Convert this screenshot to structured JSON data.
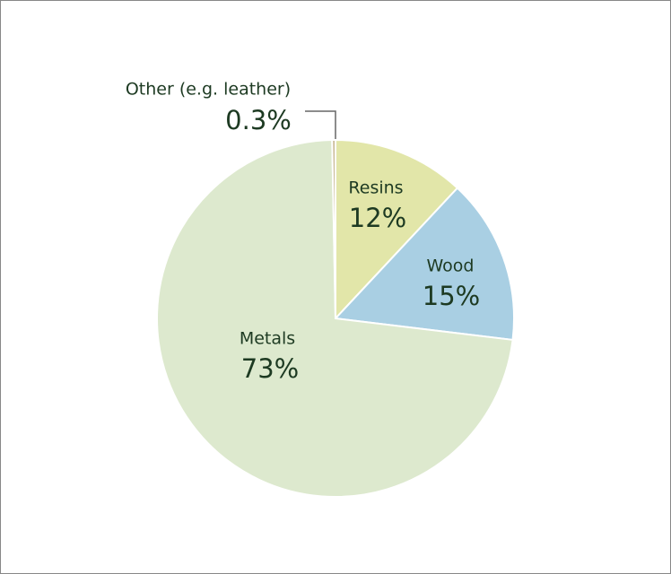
{
  "chart_data": {
    "type": "pie",
    "categories": [
      "Resins",
      "Wood",
      "Metals",
      "Other (e.g. leather)"
    ],
    "values": [
      12,
      15,
      73,
      0.3
    ],
    "value_labels": [
      "12%",
      "15%",
      "73%",
      "0.3%"
    ],
    "colors": [
      "#e2e6a9",
      "#a9cfe3",
      "#dde9ce",
      "#c9b994"
    ]
  }
}
